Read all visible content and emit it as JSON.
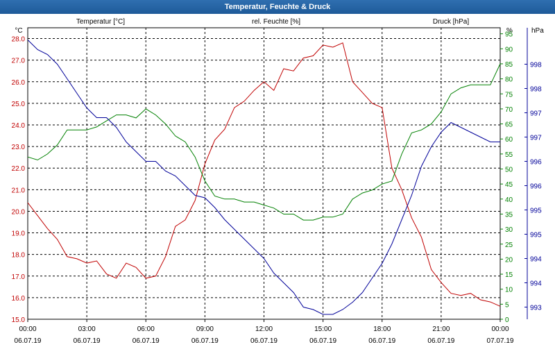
{
  "window": {
    "title": "Temperatur, Feuchte & Druck"
  },
  "chart_data": {
    "type": "line",
    "title": "Temperatur, Feuchte & Druck",
    "x_ticks": [
      {
        "time": "00:00",
        "date": "06.07.19"
      },
      {
        "time": "03:00",
        "date": "06.07.19"
      },
      {
        "time": "06:00",
        "date": "06.07.19"
      },
      {
        "time": "09:00",
        "date": "06.07.19"
      },
      {
        "time": "12:00",
        "date": "06.07.19"
      },
      {
        "time": "15:00",
        "date": "06.07.19"
      },
      {
        "time": "18:00",
        "date": "06.07.19"
      },
      {
        "time": "21:00",
        "date": "06.07.19"
      },
      {
        "time": "00:00",
        "date": "07.07.19"
      }
    ],
    "x_range_hours": [
      0,
      24
    ],
    "grid": true,
    "axes": {
      "temperature": {
        "label": "Temperatur [°C]",
        "unit": "°C",
        "color": "#c00000",
        "range": [
          15.0,
          28.5
        ],
        "ticks": [
          "15.0",
          "16.0",
          "17.0",
          "18.0",
          "19.0",
          "20.0",
          "21.0",
          "22.0",
          "23.0",
          "24.0",
          "25.0",
          "26.0",
          "27.0",
          "28.0"
        ]
      },
      "humidity": {
        "label": "rel. Feuchte [%]",
        "unit": "%",
        "color": "#008000",
        "range": [
          0,
          97
        ],
        "ticks": [
          "0",
          "5",
          "10",
          "15",
          "20",
          "25",
          "30",
          "35",
          "40",
          "45",
          "50",
          "55",
          "60",
          "65",
          "70",
          "75",
          "80",
          "85",
          "90",
          "95"
        ]
      },
      "pressure": {
        "label": "Druck [hPa]",
        "unit": "hPa",
        "color": "#000099",
        "range": [
          992.75,
          998.75
        ],
        "ticks": [
          "993",
          "994",
          "994",
          "995",
          "995",
          "996",
          "996",
          "997",
          "997",
          "998",
          "998"
        ]
      }
    },
    "series": [
      {
        "name": "Temperatur [°C]",
        "axis": "temperature",
        "x": [
          0,
          0.5,
          1,
          1.5,
          2,
          2.5,
          3,
          3.5,
          4,
          4.5,
          5,
          5.5,
          6,
          6.5,
          7,
          7.5,
          8,
          8.5,
          9,
          9.5,
          10,
          10.5,
          11,
          11.5,
          12,
          12.5,
          13,
          13.5,
          14,
          14.5,
          15,
          15.5,
          16,
          16.5,
          17,
          17.5,
          18,
          18.5,
          19,
          19.5,
          20,
          20.5,
          21,
          21.5,
          22,
          22.5,
          23,
          23.5,
          24
        ],
        "values": [
          20.4,
          19.8,
          19.2,
          18.7,
          17.9,
          17.8,
          17.6,
          17.7,
          17.1,
          16.9,
          17.6,
          17.4,
          16.9,
          17.0,
          17.9,
          19.3,
          19.6,
          20.5,
          22.2,
          23.3,
          23.8,
          24.8,
          25.1,
          25.6,
          26.0,
          25.6,
          26.6,
          26.5,
          27.1,
          27.2,
          27.7,
          27.6,
          27.8,
          26.0,
          25.5,
          25.0,
          24.8,
          22.0,
          21.0,
          19.7,
          18.8,
          17.3,
          16.7,
          16.2,
          16.1,
          16.2,
          15.9,
          15.8,
          15.6
        ]
      },
      {
        "name": "rel. Feuchte [%]",
        "axis": "humidity",
        "x": [
          0,
          0.5,
          1,
          1.5,
          2,
          2.5,
          3,
          3.5,
          4,
          4.5,
          5,
          5.5,
          6,
          6.5,
          7,
          7.5,
          8,
          8.5,
          9,
          9.5,
          10,
          10.5,
          11,
          11.5,
          12,
          12.5,
          13,
          13.5,
          14,
          14.5,
          15,
          15.5,
          16,
          16.5,
          17,
          17.5,
          18,
          18.5,
          19,
          19.5,
          20,
          20.5,
          21,
          21.5,
          22,
          22.5,
          23,
          23.5,
          24
        ],
        "values": [
          54,
          53,
          55,
          58,
          63,
          63,
          63,
          64,
          66,
          68,
          68,
          67,
          70,
          68,
          65,
          61,
          59,
          54,
          46,
          41,
          40,
          40,
          39,
          39,
          38,
          37,
          35,
          35,
          33,
          33,
          34,
          34,
          35,
          40,
          42,
          43,
          45,
          46,
          55,
          62,
          63,
          65,
          69,
          75,
          77,
          78,
          78,
          78,
          85
        ]
      },
      {
        "name": "Druck [hPa]",
        "axis": "pressure",
        "x": [
          0,
          0.5,
          1,
          1.5,
          2,
          2.5,
          3,
          3.5,
          4,
          4.5,
          5,
          5.5,
          6,
          6.5,
          7,
          7.5,
          8,
          8.5,
          9,
          9.5,
          10,
          10.5,
          11,
          11.5,
          12,
          12.5,
          13,
          13.5,
          14,
          14.5,
          15,
          15.5,
          16,
          16.5,
          17,
          17.5,
          18,
          18.5,
          19,
          19.5,
          20,
          20.5,
          21,
          21.5,
          22,
          22.5,
          23,
          23.5,
          24
        ],
        "values": [
          998.5,
          998.3,
          998.2,
          998.0,
          997.7,
          997.4,
          997.1,
          996.9,
          996.9,
          996.7,
          996.4,
          996.2,
          996.0,
          996.0,
          995.8,
          995.7,
          995.5,
          995.3,
          995.25,
          995.05,
          994.8,
          994.6,
          994.4,
          994.2,
          994.0,
          993.7,
          993.5,
          993.3,
          993.0,
          992.95,
          992.85,
          992.85,
          992.95,
          993.1,
          993.3,
          993.6,
          993.9,
          994.3,
          994.8,
          995.3,
          995.9,
          996.3,
          996.6,
          996.8,
          996.7,
          996.6,
          996.5,
          996.4,
          996.4
        ]
      }
    ]
  }
}
